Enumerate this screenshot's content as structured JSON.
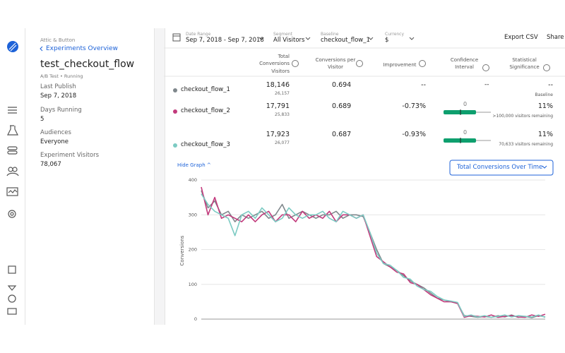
{
  "panel": {
    "breadcrumb": "Attic & Button",
    "back_link": "Experiments Overview",
    "title": "test_checkout_flow",
    "meta": "A/B Test • Running",
    "fields": [
      {
        "label": "Last Publish",
        "value": "Sep 7, 2018"
      },
      {
        "label": "Days Running",
        "value": "5"
      },
      {
        "label": "Audiences",
        "value": "Everyone"
      },
      {
        "label": "Experiment Visitors",
        "value": "78,067"
      }
    ]
  },
  "toolbar": {
    "filters": [
      {
        "label": "Date Range",
        "value": "Sep 7, 2018 - Sep 7, 2018"
      },
      {
        "label": "Segment",
        "value": "All Visitors"
      },
      {
        "label": "Baseline",
        "value": "checkout_flow_1"
      },
      {
        "label": "Currency",
        "value": "$"
      }
    ],
    "actions": [
      "Export CSV",
      "Share"
    ]
  },
  "table": {
    "headers": [
      "Total Conversions",
      "Conversions per Visitor",
      "Improvement",
      "Confidence Interval",
      "Statistical Significance"
    ],
    "subheader": "Visitors",
    "rows": [
      {
        "name": "checkout_flow_1",
        "color": "#7f878c",
        "conversions": "18,146",
        "visitors": "26,157",
        "per_visitor": "0.694",
        "improvement": "--",
        "interval": "--",
        "significance": "--",
        "note": "Baseline"
      },
      {
        "name": "checkout_flow_2",
        "color": "#c23a7c",
        "conversions": "17,791",
        "visitors": "25,833",
        "per_visitor": "0.689",
        "improvement": "-0.73%",
        "interval_zero": "0",
        "significance": "11%",
        "note": ">100,000 visitors remaining"
      },
      {
        "name": "checkout_flow_3",
        "color": "#7ccbc3",
        "conversions": "17,923",
        "visitors": "26,077",
        "per_visitor": "0.687",
        "improvement": "-0.93%",
        "interval_zero": "0",
        "significance": "11%",
        "note": "70,633 visitors remaining"
      }
    ]
  },
  "graph": {
    "toggle": "Hide Graph ^",
    "selector": "Total Conversions Over Time"
  },
  "chart_data": {
    "type": "line",
    "ylabel": "Conversions",
    "ylim": [
      0,
      400
    ],
    "yticks": [
      0,
      100,
      200,
      300,
      400
    ],
    "grid": true,
    "series": [
      {
        "color": "#7f878c",
        "values": [
          370,
          320,
          340,
          300,
          310,
          280,
          300,
          290,
          300,
          310,
          290,
          300,
          330,
          290,
          300,
          310,
          300,
          290,
          300,
          300,
          310,
          290,
          300,
          300,
          295,
          250,
          200,
          160,
          150,
          140,
          125,
          110,
          100,
          90,
          75,
          60,
          55,
          50,
          45,
          10,
          8,
          5,
          8,
          5,
          10,
          6,
          12,
          5,
          8,
          4,
          10,
          6
        ]
      },
      {
        "color": "#c23a7c",
        "values": [
          380,
          300,
          350,
          290,
          300,
          290,
          280,
          300,
          280,
          300,
          310,
          280,
          300,
          300,
          280,
          310,
          290,
          300,
          290,
          310,
          280,
          300,
          300,
          290,
          300,
          240,
          180,
          165,
          150,
          135,
          130,
          105,
          100,
          85,
          70,
          60,
          50,
          50,
          45,
          5,
          10,
          8,
          6,
          12,
          5,
          8,
          10,
          6,
          5,
          12,
          8,
          14
        ]
      },
      {
        "color": "#7ccbc3",
        "values": [
          360,
          330,
          310,
          300,
          290,
          240,
          300,
          310,
          290,
          320,
          300,
          280,
          290,
          320,
          300,
          290,
          300,
          300,
          310,
          290,
          280,
          310,
          300,
          290,
          300,
          250,
          190,
          160,
          155,
          140,
          120,
          115,
          95,
          85,
          80,
          65,
          55,
          52,
          48,
          8,
          12,
          6,
          10,
          5,
          8,
          12,
          6,
          10,
          8,
          6,
          12,
          5
        ]
      }
    ]
  }
}
